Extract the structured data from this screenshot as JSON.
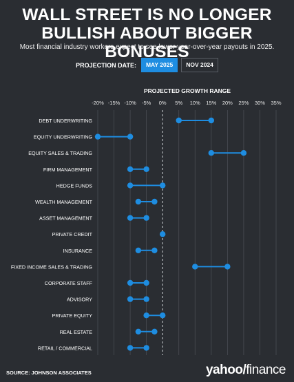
{
  "header": {
    "title_line1": "WALL STREET IS NO LONGER",
    "title_line2": "BULLISH ABOUT BIGGER BONUSES",
    "subtitle": "Most financial industry workers expect to see lower year-over-year payouts in 2025."
  },
  "projection": {
    "label": "PROJECTION DATE:",
    "options": [
      "MAY 2025",
      "NOV 2024"
    ],
    "selected": "MAY 2025"
  },
  "colors": {
    "background": "#2a2d32",
    "accent": "#1e8de1",
    "grid": "#4a4d54",
    "zero_line": "#cfd2d6"
  },
  "chart_data": {
    "type": "dumbbell",
    "title": "PROJECTED GROWTH RANGE",
    "x_unit": "%",
    "xlim": [
      -20,
      35
    ],
    "x_ticks": [
      -20,
      -15,
      -10,
      -5,
      0,
      5,
      10,
      15,
      20,
      25,
      30,
      35
    ],
    "x_tick_labels": [
      "-20%",
      "-15%",
      "-10%",
      "-5%",
      "0%",
      "5%",
      "10%",
      "15%",
      "20%",
      "25%",
      "30%",
      "35%"
    ],
    "categories": [
      "DEBT UNDERWRITING",
      "EQUITY UNDERWRITING",
      "EQUITY SALES & TRADING",
      "FIRM MANAGEMENT",
      "HEDGE FUNDS",
      "WEALTH MANAGEMENT",
      "ASSET MANAGEMENT",
      "PRIVATE CREDIT",
      "INSURANCE",
      "FIXED INCOME SALES & TRADING",
      "CORPORATE STAFF",
      "ADVISORY",
      "PRIVATE EQUITY",
      "REAL ESTATE",
      "RETAIL / COMMERCIAL"
    ],
    "ranges": [
      [
        5,
        15
      ],
      [
        -20,
        -10
      ],
      [
        15,
        25
      ],
      [
        -10,
        -5
      ],
      [
        -10,
        0
      ],
      [
        -7.5,
        -2.5
      ],
      [
        -10,
        -5
      ],
      [
        0,
        0
      ],
      [
        -7.5,
        -2.5
      ],
      [
        10,
        20
      ],
      [
        -10,
        -5
      ],
      [
        -10,
        -5
      ],
      [
        -5,
        0
      ],
      [
        -7.5,
        -2.5
      ],
      [
        -10,
        -5
      ]
    ]
  },
  "footer": {
    "source": "SOURCE: JOHNSON ASSOCIATES",
    "logo_yahoo": "yahoo",
    "logo_slash": "/",
    "logo_finance": "finance"
  }
}
